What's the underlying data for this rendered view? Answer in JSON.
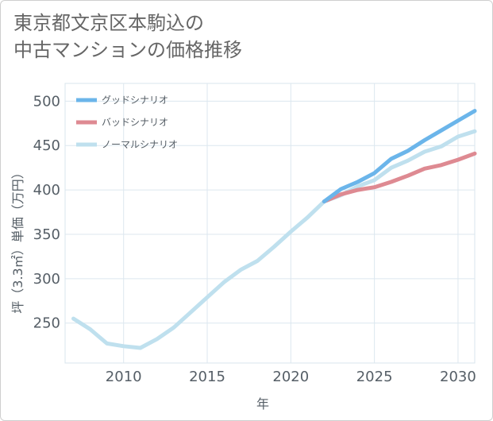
{
  "chart_data": {
    "type": "line",
    "title": [
      "東京都文京区本駒込の",
      "中古マンションの価格推移"
    ],
    "xlabel": "年",
    "ylabel": "坪（3.3㎡）単価（万円）",
    "xlim": [
      2006.5,
      2031
    ],
    "ylim": [
      205,
      520
    ],
    "x_ticks": [
      2010,
      2015,
      2020,
      2025,
      2030
    ],
    "y_ticks": [
      250,
      300,
      350,
      400,
      450,
      500
    ],
    "grid": true,
    "legend_position": "top-left",
    "series": [
      {
        "name": "グッドシナリオ",
        "color": "#6bb5ea",
        "x": [
          2022,
          2023,
          2024,
          2025,
          2026,
          2027,
          2028,
          2029,
          2030,
          2031
        ],
        "y": [
          387,
          401,
          409,
          419,
          435,
          444,
          456,
          467,
          478,
          489
        ]
      },
      {
        "name": "バッドシナリオ",
        "color": "#de8a92",
        "x": [
          2022,
          2023,
          2024,
          2025,
          2026,
          2027,
          2028,
          2029,
          2030,
          2031
        ],
        "y": [
          387,
          395,
          400,
          403,
          409,
          416,
          424,
          428,
          434,
          441
        ]
      },
      {
        "name": "ノーマルシナリオ",
        "color": "#bfe0ee",
        "x": [
          2007,
          2008,
          2009,
          2010,
          2011,
          2012,
          2013,
          2014,
          2015,
          2016,
          2017,
          2018,
          2019,
          2020,
          2021,
          2022,
          2023,
          2024,
          2025,
          2026,
          2027,
          2028,
          2029,
          2030,
          2031
        ],
        "y": [
          255,
          243,
          227,
          224,
          222,
          232,
          245,
          262,
          279,
          296,
          310,
          320,
          336,
          353,
          369,
          387,
          394,
          404,
          411,
          425,
          433,
          443,
          449,
          460,
          466
        ]
      }
    ]
  }
}
